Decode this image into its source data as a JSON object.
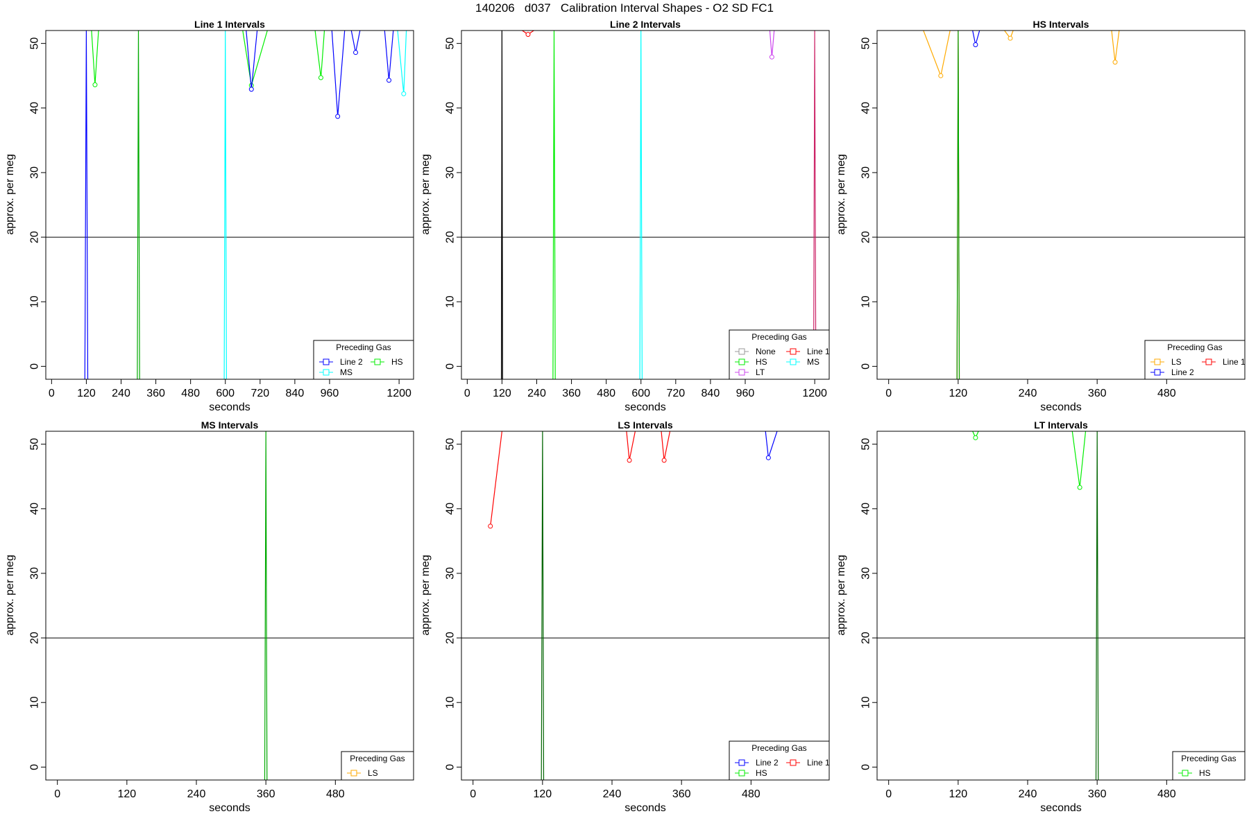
{
  "figure": {
    "title": "140206   d037   Calibration Interval Shapes - O2 SD FC1"
  },
  "legend_title": "Preceding Gas",
  "chart_data": [
    {
      "type": "line",
      "title": "Line 1 Intervals",
      "xlabel": "seconds",
      "ylabel": "approx. per meg",
      "xlim": [
        -20,
        1250
      ],
      "ylim": [
        -2,
        52
      ],
      "xticks": [
        0,
        120,
        240,
        360,
        480,
        600,
        720,
        840,
        960,
        1200
      ],
      "yticks": [
        0,
        10,
        20,
        30,
        40,
        50
      ],
      "hline": 20,
      "legend_position": "bottom-right",
      "legend_columns": 2,
      "series": [
        {
          "name": "Line 2",
          "color": "#0000ff",
          "x": [
            115,
            120,
            125
          ],
          "y": [
            -2,
            52,
            -2
          ]
        },
        {
          "name": "HS",
          "color": "#00ee00",
          "x": [
            138,
            150,
            162
          ],
          "y": [
            52,
            43.6,
            52
          ]
        },
        {
          "name": "",
          "color": "#00aa00",
          "x": [
            296,
            300,
            304
          ],
          "y": [
            -2,
            52,
            -2
          ]
        },
        {
          "name": "",
          "color": "#00ffff",
          "x": [
            596,
            600,
            604
          ],
          "y": [
            -2,
            52,
            -2
          ]
        },
        {
          "name": "",
          "color": "#00ee00",
          "x": [
            660,
            690,
            745
          ],
          "y": [
            52,
            43.5,
            52
          ]
        },
        {
          "name": "",
          "color": "#0000ff",
          "x": [
            672,
            690,
            710
          ],
          "y": [
            52,
            42.9,
            52
          ]
        },
        {
          "name": "",
          "color": "#00ee00",
          "x": [
            910,
            930,
            942
          ],
          "y": [
            52,
            44.7,
            52
          ]
        },
        {
          "name": "",
          "color": "#0000ff",
          "x": [
            968,
            988,
            1012
          ],
          "y": [
            52,
            38.7,
            52
          ]
        },
        {
          "name": "",
          "color": "#0000ff",
          "x": [
            1035,
            1050,
            1065
          ],
          "y": [
            52,
            48.6,
            52
          ]
        },
        {
          "name": "",
          "color": "#0000ff",
          "x": [
            1150,
            1165,
            1180
          ],
          "y": [
            52,
            44.3,
            52
          ]
        },
        {
          "name": "MS",
          "color": "#00ffff",
          "x": [
            1195,
            1216,
            1225
          ],
          "y": [
            52,
            42.2,
            52
          ]
        }
      ]
    },
    {
      "type": "line",
      "title": "Line 2 Intervals",
      "xlabel": "seconds",
      "ylabel": "approx. per meg",
      "xlim": [
        -20,
        1250
      ],
      "ylim": [
        -2,
        52
      ],
      "xticks": [
        0,
        120,
        240,
        360,
        480,
        600,
        720,
        840,
        960,
        1200
      ],
      "yticks": [
        0,
        10,
        20,
        30,
        40,
        50
      ],
      "hline": 20,
      "legend_position": "bottom-right",
      "legend_columns": 2,
      "series": [
        {
          "name": "None",
          "color": "#999999",
          "x": [
            118,
            120,
            122
          ],
          "y": [
            -2,
            52,
            -2
          ]
        },
        {
          "name": "",
          "color": "#000000",
          "x": [
            118,
            120,
            122
          ],
          "y": [
            -2,
            52,
            -2
          ]
        },
        {
          "name": "Line 1",
          "color": "#ff0000",
          "x": [
            190,
            210,
            230
          ],
          "y": [
            52,
            51.4,
            52
          ]
        },
        {
          "name": "HS",
          "color": "#00ee00",
          "x": [
            296,
            300,
            304
          ],
          "y": [
            -2,
            52,
            -2
          ]
        },
        {
          "name": "MS",
          "color": "#00ffff",
          "x": [
            596,
            600,
            604
          ],
          "y": [
            -2,
            52,
            -2
          ]
        },
        {
          "name": "LT",
          "color": "#cc44ee",
          "x": [
            1045,
            1052,
            1060
          ],
          "y": [
            52,
            47.9,
            52
          ]
        },
        {
          "name": "",
          "color": "#cc2266",
          "x": [
            1196,
            1200,
            1204
          ],
          "y": [
            -2,
            52,
            -2
          ]
        }
      ]
    },
    {
      "type": "line",
      "title": "HS Intervals",
      "xlabel": "seconds",
      "ylabel": "approx. per meg",
      "xlim": [
        -20,
        615
      ],
      "ylim": [
        -2,
        52
      ],
      "xticks": [
        0,
        120,
        240,
        360,
        480
      ],
      "yticks": [
        0,
        10,
        20,
        30,
        40,
        50
      ],
      "hline": 20,
      "legend_position": "bottom-right",
      "legend_columns": 2,
      "series": [
        {
          "name": "LS",
          "color": "#ffaa00",
          "x": [
            60,
            90,
            106
          ],
          "y": [
            52,
            45.0,
            52
          ]
        },
        {
          "name": "Line 1",
          "color": "#ff0000",
          "x": [
            118,
            120,
            122
          ],
          "y": [
            -2,
            52,
            -2
          ]
        },
        {
          "name": "",
          "color": "#00aa00",
          "x": [
            118,
            120,
            122
          ],
          "y": [
            -2,
            52,
            -2
          ]
        },
        {
          "name": "Line 2",
          "color": "#0000ff",
          "x": [
            145,
            150,
            157
          ],
          "y": [
            52,
            49.8,
            52
          ]
        },
        {
          "name": "",
          "color": "#ffaa00",
          "x": [
            200,
            210,
            215
          ],
          "y": [
            52,
            50.8,
            52
          ]
        },
        {
          "name": "",
          "color": "#ffaa00",
          "x": [
            385,
            391,
            398
          ],
          "y": [
            52,
            47.1,
            52
          ]
        }
      ]
    },
    {
      "type": "line",
      "title": "MS Intervals",
      "xlabel": "seconds",
      "ylabel": "approx. per meg",
      "xlim": [
        -20,
        615
      ],
      "ylim": [
        -2,
        52
      ],
      "xticks": [
        0,
        120,
        240,
        360,
        480
      ],
      "yticks": [
        0,
        10,
        20,
        30,
        40,
        50
      ],
      "hline": 20,
      "legend_position": "bottom-right",
      "legend_columns": 1,
      "series": [
        {
          "name": "LS",
          "color": "#ffaa00",
          "x": [],
          "y": []
        },
        {
          "name": "",
          "color": "#00aa00",
          "x": [
            358,
            360,
            362
          ],
          "y": [
            -2,
            52,
            -2
          ]
        }
      ]
    },
    {
      "type": "line",
      "title": "LS Intervals",
      "xlabel": "seconds",
      "ylabel": "approx. per meg",
      "xlim": [
        -20,
        615
      ],
      "ylim": [
        -2,
        52
      ],
      "xticks": [
        0,
        120,
        240,
        360,
        480
      ],
      "yticks": [
        0,
        10,
        20,
        30,
        40,
        50
      ],
      "hline": 20,
      "legend_position": "bottom-right",
      "legend_columns": 2,
      "series": [
        {
          "name": "Line 2",
          "color": "#0000ff",
          "x": [
            505,
            510,
            525
          ],
          "y": [
            52,
            47.9,
            52
          ]
        },
        {
          "name": "Line 1",
          "color": "#ff0000",
          "x": [
            30,
            50
          ],
          "y": [
            37.3,
            52
          ]
        },
        {
          "name": "HS",
          "color": "#00ee00",
          "x": [],
          "y": []
        },
        {
          "name": "",
          "color": "#006400",
          "x": [
            118,
            120,
            122
          ],
          "y": [
            -2,
            52,
            -2
          ]
        },
        {
          "name": "",
          "color": "#ff0000",
          "x": [
            265,
            270,
            280
          ],
          "y": [
            52,
            47.5,
            52
          ]
        },
        {
          "name": "",
          "color": "#ff0000",
          "x": [
            325,
            330,
            340
          ],
          "y": [
            52,
            47.5,
            52
          ]
        }
      ]
    },
    {
      "type": "line",
      "title": "LT Intervals",
      "xlabel": "seconds",
      "ylabel": "approx. per meg",
      "xlim": [
        -20,
        615
      ],
      "ylim": [
        -2,
        52
      ],
      "xticks": [
        0,
        120,
        240,
        360,
        480
      ],
      "yticks": [
        0,
        10,
        20,
        30,
        40,
        50
      ],
      "hline": 20,
      "legend_position": "bottom-right",
      "legend_columns": 1,
      "series": [
        {
          "name": "HS",
          "color": "#00ee00",
          "x": [
            145,
            150,
            155
          ],
          "y": [
            52,
            51.0,
            52
          ]
        },
        {
          "name": "",
          "color": "#00ee00",
          "x": [
            317,
            330,
            340
          ],
          "y": [
            52,
            43.3,
            52
          ]
        },
        {
          "name": "",
          "color": "#006400",
          "x": [
            358,
            360,
            362
          ],
          "y": [
            -2,
            52,
            -2
          ]
        }
      ]
    }
  ]
}
